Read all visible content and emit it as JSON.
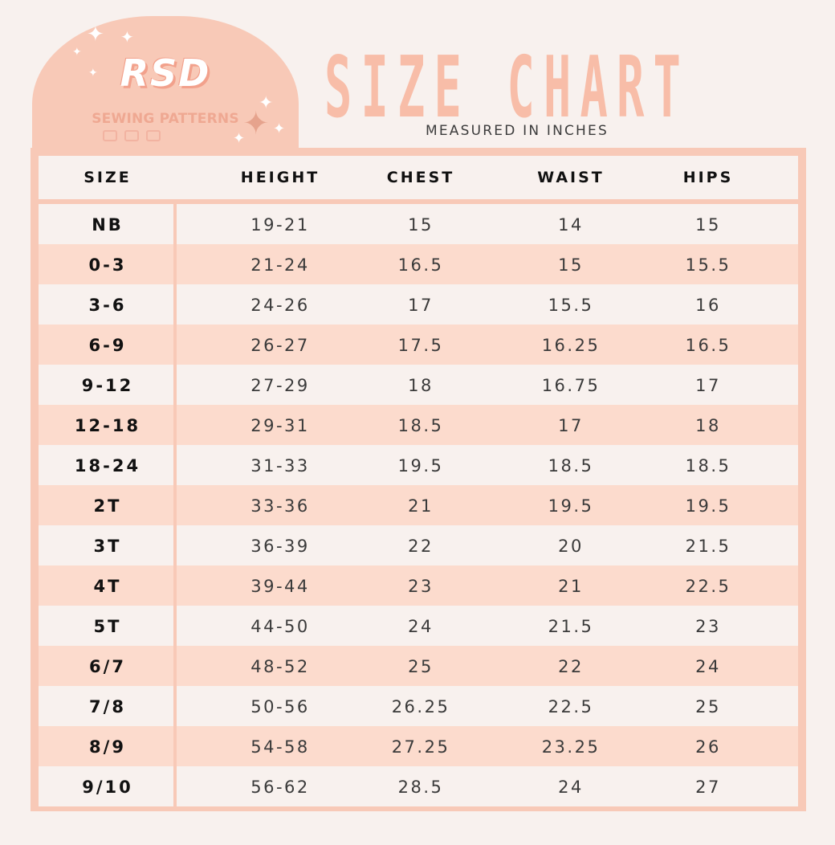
{
  "logo": {
    "wordmark": "RSD",
    "subtitle": "SEWING PATTERNS"
  },
  "header": {
    "title": "SIZE CHART",
    "subtitle": "MEASURED IN INCHES"
  },
  "table": {
    "columns": [
      "SIZE",
      "HEIGHT",
      "CHEST",
      "WAIST",
      "HIPS"
    ],
    "rows": [
      [
        "NB",
        "19-21",
        "15",
        "14",
        "15"
      ],
      [
        "0-3",
        "21-24",
        "16.5",
        "15",
        "15.5"
      ],
      [
        "3-6",
        "24-26",
        "17",
        "15.5",
        "16"
      ],
      [
        "6-9",
        "26-27",
        "17.5",
        "16.25",
        "16.5"
      ],
      [
        "9-12",
        "27-29",
        "18",
        "16.75",
        "17"
      ],
      [
        "12-18",
        "29-31",
        "18.5",
        "17",
        "18"
      ],
      [
        "18-24",
        "31-33",
        "19.5",
        "18.5",
        "18.5"
      ],
      [
        "2T",
        "33-36",
        "21",
        "19.5",
        "19.5"
      ],
      [
        "3T",
        "36-39",
        "22",
        "20",
        "21.5"
      ],
      [
        "4T",
        "39-44",
        "23",
        "21",
        "22.5"
      ],
      [
        "5T",
        "44-50",
        "24",
        "21.5",
        "23"
      ],
      [
        "6/7",
        "48-52",
        "25",
        "22",
        "24"
      ],
      [
        "7/8",
        "50-56",
        "26.25",
        "22.5",
        "25"
      ],
      [
        "8/9",
        "54-58",
        "27.25",
        "23.25",
        "26"
      ],
      [
        "9/10",
        "56-62",
        "28.5",
        "24",
        "27"
      ]
    ]
  },
  "colors": {
    "background": "#f8f1ee",
    "accent": "#f8c9b7",
    "row_alt": "#fcdbcd",
    "title": "#f8bda8"
  }
}
